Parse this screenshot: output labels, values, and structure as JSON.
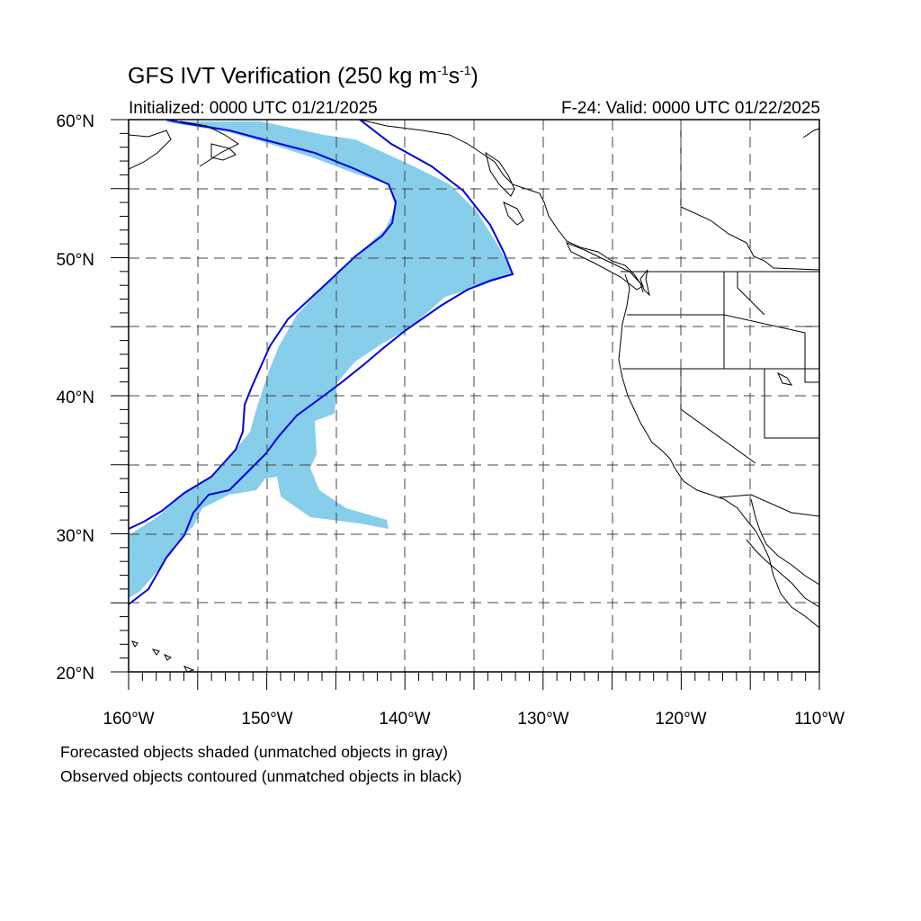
{
  "title": {
    "main": "GFS IVT Verification (250 kg m",
    "sup1": "-1",
    "mid": "s",
    "sup2": "-1",
    "end": ")"
  },
  "initialized": "Initialized: 0000 UTC 01/21/2025",
  "valid": "F-24: Valid: 0000 UTC 01/22/2025",
  "captions": [
    "Forecasted objects shaded (unmatched objects in gray)",
    "Observed objects contoured (unmatched objects in black)"
  ],
  "map": {
    "lon_range": [
      -160,
      -110
    ],
    "lat_range": [
      20,
      60
    ],
    "lon_labels": [
      "160°W",
      "150°W",
      "140°W",
      "130°W",
      "120°W",
      "110°W"
    ],
    "lat_labels": [
      "20°N",
      "30°N",
      "40°N",
      "50°N",
      "60°N"
    ],
    "grid": "dashed every 5°",
    "colors": {
      "forecast_fill": "#87ceeb",
      "observed_contour": "#0000e0",
      "coastline": "#000000",
      "grid": "#555555"
    }
  }
}
